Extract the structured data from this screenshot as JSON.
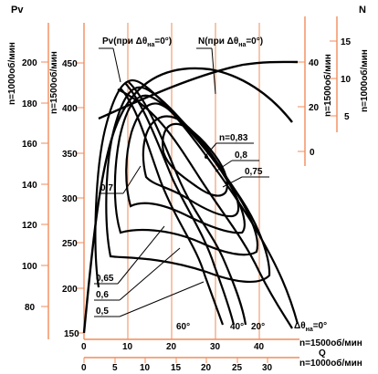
{
  "chart_data": {
    "type": "line",
    "labels": {
      "pv_axis_title": "Pv",
      "n_axis_title": "N",
      "q_axis_title": "Q",
      "left_axis1_label": "n=1000об/мин",
      "left_axis2_label": "n=1500об/мин",
      "right_axis1_label": "n=1500об/мин",
      "right_axis2_label": "n=1000об/мин",
      "bottom_axis1_label": "n=1500об/мин",
      "bottom_axis2_label": "n=1000об/мин",
      "pv_curve_label": "Pv(при Δθ",
      "pv_curve_sub": "на",
      "pv_curve_tail": "=0°)",
      "n_curve_label": "N(при Δθ",
      "n_curve_sub": "на",
      "n_curve_tail": "=0°)",
      "delta_label": "Δθ",
      "delta_sub": "на",
      "delta_tail": "=0°"
    },
    "axes": {
      "pv_1000": {
        "ticks": [
          80,
          100,
          120,
          140,
          160,
          180,
          200
        ]
      },
      "pv_1500": {
        "ticks": [
          150,
          200,
          250,
          300,
          350,
          400,
          450
        ]
      },
      "n_1500": {
        "ticks": [
          0,
          20,
          40
        ]
      },
      "n_1000": {
        "ticks": [
          5,
          10,
          15
        ]
      },
      "q_1500": {
        "ticks": [
          0,
          10,
          20,
          30,
          40
        ]
      },
      "q_1000": {
        "ticks": [
          0,
          5,
          10,
          15,
          20,
          25,
          30
        ]
      }
    },
    "efficiency_labels": [
      "n=0,83",
      "0,8",
      "0,75",
      "0,7",
      "0,65",
      "0,6",
      "0,5"
    ],
    "angle_labels": [
      "60°",
      "40°",
      "20°"
    ],
    "blade_angle_curves": [
      {
        "angle": "60°",
        "x": [
          11.9,
          14.6,
          16.3,
          18.3,
          20.6,
          21.8,
          24.0,
          25.2,
          29.4
        ],
        "y": [
          417,
          392,
          351,
          306,
          272,
          250,
          221,
          200,
          154
        ]
      },
      {
        "angle": "40°",
        "x": [
          13.1,
          15.9,
          18.7,
          20.3,
          22.7,
          24.4,
          27.6,
          29.0,
          34.2
        ],
        "y": [
          423,
          393,
          353,
          313,
          279,
          256,
          228,
          206,
          162
        ]
      },
      {
        "angle": "20°",
        "x": [
          13.7,
          16.9,
          20.3,
          22.5,
          24.8,
          26.6,
          30.1,
          31.7,
          36.2
        ],
        "y": [
          425,
          392,
          351,
          310,
          276,
          254,
          225,
          204,
          162
        ]
      },
      {
        "angle": "0°",
        "x": [
          8.7,
          16.9,
          24.0,
          31.7,
          37.9,
          46.4
        ],
        "y": [
          420,
          400,
          337,
          252,
          197,
          153
        ]
      }
    ],
    "pv_curve": {
      "x": [
        0,
        3.8,
        8.5,
        12.6,
        16.5,
        20.5,
        28.9,
        37.1,
        46.3
      ],
      "y": [
        150,
        200,
        250,
        300,
        350,
        400,
        450,
        500,
        550
      ]
    },
    "n_curve": {
      "x": [
        3.2,
        9.9,
        13.3,
        23.1,
        32.0,
        40.1,
        43.7,
        48.5
      ],
      "y": [
        24,
        27,
        30,
        35,
        38,
        40,
        40.5,
        40.5
      ]
    }
  }
}
